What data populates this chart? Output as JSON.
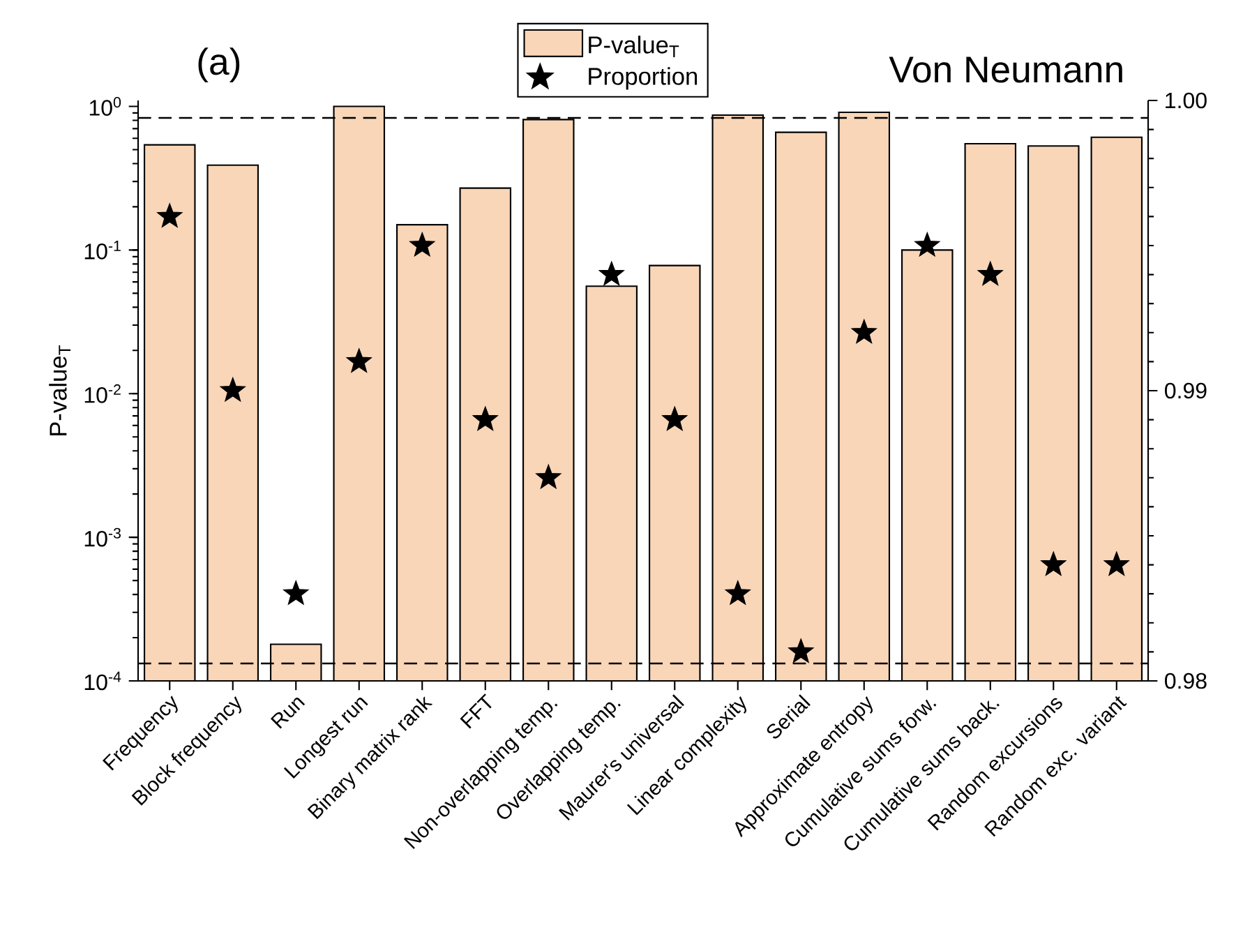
{
  "chart_data": {
    "type": "bar",
    "title": "Von Neumann",
    "ylabel": "P-value$_{T}$",
    "annotations": [
      "(a)"
    ],
    "categories": [
      "Frequency",
      "Block frequency",
      "Run",
      "Longest run",
      "Binary matrix rank",
      "FFT",
      "Non-overlapping temp.",
      "Overlapping temp.",
      "Maurer's universal",
      "Linear complexity",
      "Serial",
      "Approximate entropy",
      "Cumulative sums forw.",
      "Cumulative sums back.",
      "Random excursions",
      "Random exc. variant"
    ],
    "series": [
      {
        "name": "P-value$_{T}$",
        "color": "#f9d6b8",
        "values": [
          0.54,
          0.39,
          0.00018,
          1.0,
          0.15,
          0.27,
          0.81,
          0.056,
          0.078,
          0.87,
          0.66,
          0.91,
          0.1,
          0.55,
          0.53,
          0.61
        ]
      },
      {
        "name": "Proportion",
        "type": "scatter",
        "axis": "y2",
        "marker": "star",
        "color": "#000000",
        "values": [
          0.996,
          0.99,
          0.983,
          0.991,
          0.995,
          0.989,
          0.987,
          0.994,
          0.989,
          0.983,
          0.981,
          0.992,
          0.995,
          0.994,
          0.984,
          0.984
        ]
      }
    ],
    "log": "y",
    "ylim": [
      0.0001,
      1.1
    ],
    "yticks": [
      {
        "value": 0.0001,
        "label": "10$^{-4}$"
      },
      {
        "value": 0.001,
        "label": "10$^{-3}$"
      },
      {
        "value": 0.01,
        "label": "10$^{-2}$"
      },
      {
        "value": 0.1,
        "label": "10$^{-1}$"
      },
      {
        "value": 1,
        "label": "10$^{0}$"
      }
    ],
    "y2lim": [
      0.98,
      1.0
    ],
    "y2ticks": [
      0.98,
      0.99,
      {
        "value": 1.0,
        "label": "1.00"
      }
    ],
    "ref_lines": [
      {
        "axis": "y2",
        "value": 0.9806,
        "color": "#000000",
        "line_style": "dashed"
      },
      {
        "axis": "y2",
        "value": 0.9994,
        "color": "#000000",
        "line_style": "dashed"
      }
    ],
    "legend": "top"
  }
}
